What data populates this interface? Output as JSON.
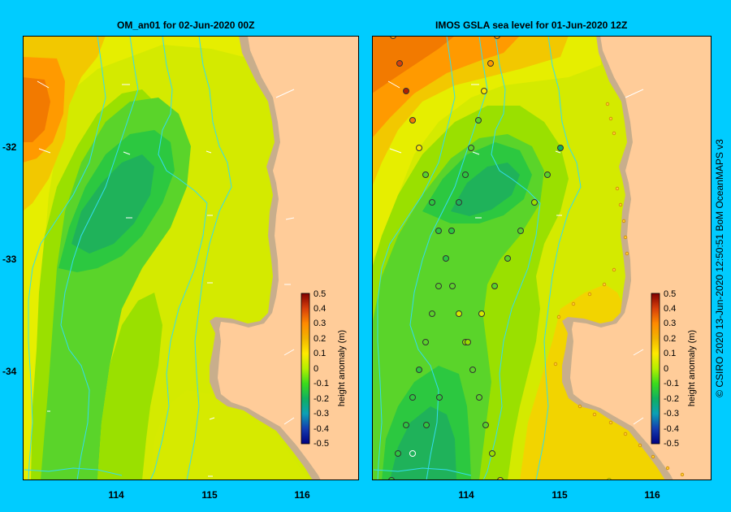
{
  "left_panel": {
    "title": "OM_an01  for 02-Jun-2020 00Z"
  },
  "right_panel": {
    "title": "IMOS GSLA sea level  for 01-Jun-2020 12Z"
  },
  "credit": "© CSIRO 2020   13-Jun-2020 12:50:51 BoM OceanMAPS v3",
  "axes": {
    "lat_ticks": [
      "-32",
      "-33",
      "-34"
    ],
    "left_lon_ticks": [
      "114",
      "115",
      "116"
    ],
    "right_lon_ticks": [
      "114",
      "115",
      "116"
    ]
  },
  "colorbar": {
    "label": "height anomaly (m)",
    "ticks": [
      "0.5",
      "0.4",
      "0.3",
      "0.2",
      "0.1",
      "0",
      "-0.1",
      "-0.2",
      "-0.3",
      "-0.4",
      "-0.5"
    ],
    "colors": [
      "#800000",
      "#d8400a",
      "#ff8a00",
      "#f2b400",
      "#ffea00",
      "#b4f000",
      "#3bdb1c",
      "#10b060",
      "#0ca0b4",
      "#143cb0",
      "#000080"
    ]
  },
  "colors": {
    "land": "#ffcc99",
    "shelf": "#c8ae8c",
    "frame_bg": "#00ccff",
    "contour": "#33ddee"
  }
}
